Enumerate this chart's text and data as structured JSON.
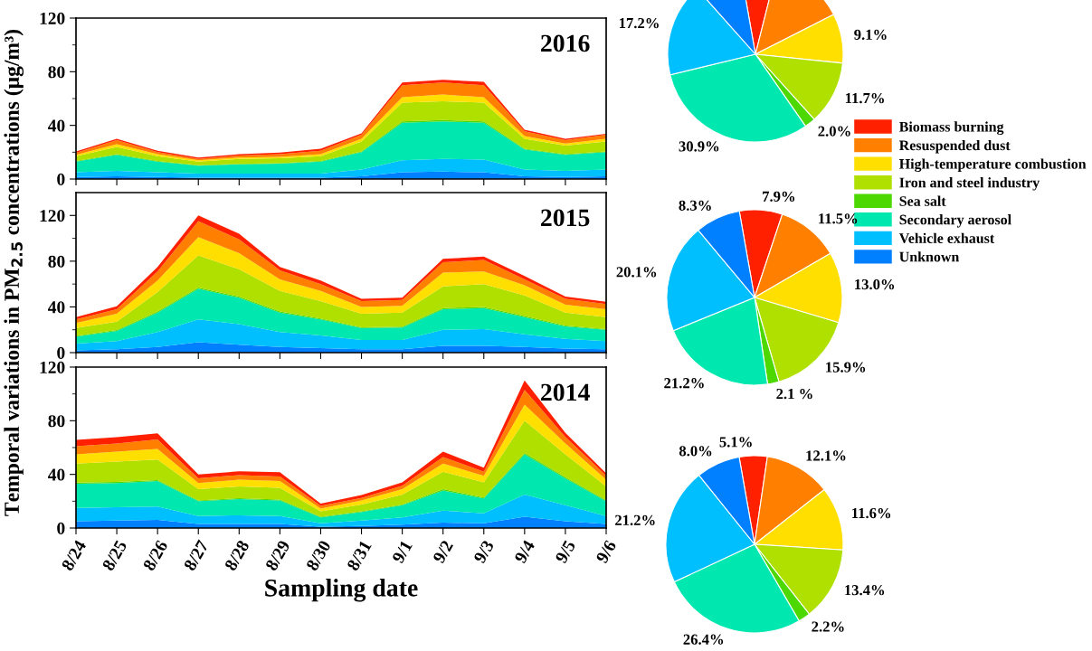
{
  "chart_data": [
    {
      "type": "area",
      "stacked": true,
      "title": "2016",
      "categories": [
        null,
        null,
        null,
        null,
        null,
        null,
        null,
        null,
        null,
        null,
        null,
        null,
        null,
        null
      ],
      "ylim": [
        0,
        120
      ],
      "yticks": [
        0,
        40,
        80,
        120
      ],
      "tick_labels": "y",
      "series": [
        {
          "color": "#0080ff",
          "values": [
            1.5,
            2,
            1.5,
            1,
            1,
            1,
            1,
            2,
            5,
            5.5,
            5,
            2,
            1.5,
            2
          ]
        },
        {
          "color": "#00bfff",
          "values": [
            3.5,
            4,
            3.5,
            3,
            3,
            3,
            3,
            5,
            9,
            9.5,
            9.5,
            5,
            4.5,
            5
          ]
        },
        {
          "color": "#00e8b0",
          "values": [
            8,
            12,
            8,
            6,
            7,
            7.5,
            9,
            13,
            28,
            28,
            27.5,
            15,
            12,
            13
          ]
        },
        {
          "color": "#4cd800",
          "values": [
            0.4,
            0.5,
            0.4,
            0.3,
            0.3,
            0.3,
            0.4,
            0.6,
            1,
            1,
            1,
            0.6,
            0.5,
            0.6
          ]
        },
        {
          "color": "#b0e000",
          "values": [
            3.6,
            5.5,
            3.6,
            2.7,
            3.7,
            3.7,
            3.6,
            7.4,
            14,
            14,
            14,
            7.4,
            6.5,
            7.4
          ]
        },
        {
          "color": "#ffdf00",
          "values": [
            1,
            2,
            1.5,
            1,
            1,
            1,
            1.5,
            2,
            4,
            5,
            4,
            2,
            1.5,
            2
          ]
        },
        {
          "color": "#ff8000",
          "values": [
            1.5,
            3,
            1.5,
            1,
            1.5,
            2,
            2.5,
            3,
            9,
            9,
            9,
            3.5,
            2.5,
            3
          ]
        },
        {
          "color": "#ff2000",
          "values": [
            1,
            1,
            1,
            1,
            1,
            1.2,
            1.6,
            1,
            2,
            2,
            2.5,
            1.2,
            1,
            0.7
          ]
        }
      ]
    },
    {
      "type": "pie",
      "categories": [
        "Biomass burning",
        "Resuspended dust",
        "High-temperature combustion",
        "Iron and steel industry",
        "Sea salt",
        "Secondary aerosol",
        "Vehicle exhaust",
        "Unknown"
      ],
      "values": [
        6.7,
        13.6,
        9.1,
        11.7,
        2.0,
        30.9,
        17.2,
        8.8
      ],
      "colors": [
        "#ff2000",
        "#ff8000",
        "#ffdf00",
        "#b0e000",
        "#4cd800",
        "#00e8b0",
        "#00bfff",
        "#0080ff"
      ],
      "value_labels": [
        null,
        null,
        "9.1%",
        "11.7%",
        "2.0%",
        "30.9%",
        "17.2%",
        null
      ],
      "legend": "bottom right"
    },
    {
      "type": "area",
      "stacked": true,
      "title": "2015",
      "ylabel": "Temporal variations in PM$_{2.5}$ concentrations (μg/m³)",
      "categories": [
        null,
        null,
        null,
        null,
        null,
        null,
        null,
        null,
        null,
        null,
        null,
        null,
        null,
        null
      ],
      "ylim": [
        0,
        140
      ],
      "yticks": [
        0,
        40,
        80,
        120
      ],
      "tick_labels": "y",
      "series": [
        {
          "color": "#0080ff",
          "values": [
            2,
            3,
            5,
            9,
            7,
            5,
            4,
            3,
            3,
            6,
            6,
            5,
            3.5,
            3
          ]
        },
        {
          "color": "#00bfff",
          "values": [
            6,
            7,
            13,
            20,
            18,
            13,
            11,
            8,
            8,
            14,
            14.5,
            11,
            8.5,
            7
          ]
        },
        {
          "color": "#00e8b0",
          "values": [
            6,
            9,
            17,
            27,
            23,
            17,
            14,
            10.5,
            11,
            18,
            18.5,
            15,
            11,
            10
          ]
        },
        {
          "color": "#4cd800",
          "values": [
            0.6,
            0.7,
            1,
            1,
            1,
            1,
            0.8,
            0.7,
            0.7,
            1,
            1,
            1,
            0.7,
            0.6
          ]
        },
        {
          "color": "#b0e000",
          "values": [
            6.9,
            7.3,
            17,
            28,
            24,
            18,
            15.2,
            11.8,
            12.3,
            19,
            20,
            18,
            11.3,
            10.4
          ]
        },
        {
          "color": "#ffdf00",
          "values": [
            4.5,
            7,
            10,
            16,
            14,
            10,
            9,
            6,
            6,
            12,
            11,
            9,
            7,
            7
          ]
        },
        {
          "color": "#ff8000",
          "values": [
            3,
            4,
            8,
            14,
            12,
            8,
            6,
            5,
            5,
            9,
            10,
            5,
            5,
            4.5
          ]
        },
        {
          "color": "#ff2000",
          "values": [
            2,
            2.5,
            4,
            5,
            5,
            3,
            3,
            2,
            2,
            3,
            3,
            3,
            2,
            2
          ]
        }
      ]
    },
    {
      "type": "pie",
      "categories": [
        null,
        null,
        null,
        null,
        null,
        null,
        null,
        null
      ],
      "values": [
        7.9,
        11.5,
        13.0,
        15.9,
        2.1,
        21.2,
        20.1,
        8.3
      ],
      "colors": [
        "#ff2000",
        "#ff8000",
        "#ffdf00",
        "#b0e000",
        "#4cd800",
        "#00e8b0",
        "#00bfff",
        "#0080ff"
      ],
      "value_labels": [
        "7.9%",
        "11.5%",
        "13.0%",
        "15.9%",
        "2.1 %",
        "21.2%",
        "20.1%",
        "8.3%"
      ]
    },
    {
      "type": "area",
      "stacked": true,
      "title": "2014",
      "xlabel": "Sampling date",
      "categories": [
        "8/24",
        "8/25",
        "8/26",
        "8/27",
        "8/28",
        "8/29",
        "8/30",
        "8/31",
        "9/1",
        "9/2",
        "9/3",
        "9/4",
        "9/5",
        "9/6"
      ],
      "ylim": [
        0,
        120
      ],
      "yticks": [
        0,
        40,
        80,
        120
      ],
      "series": [
        {
          "color": "#0080ff",
          "values": [
            5,
            5.5,
            6,
            3,
            3,
            3,
            1,
            1.5,
            2.5,
            4,
            3.5,
            8.5,
            5,
            3
          ]
        },
        {
          "color": "#00bfff",
          "values": [
            10,
            10,
            10,
            6,
            6.5,
            6,
            2.5,
            4,
            5.5,
            9,
            7.5,
            16.5,
            12,
            6
          ]
        },
        {
          "color": "#00e8b0",
          "values": [
            18,
            18,
            19,
            11,
            12,
            11.5,
            4.5,
            6.5,
            9,
            15,
            11,
            30,
            20,
            11
          ]
        },
        {
          "color": "#4cd800",
          "values": [
            0.8,
            0.8,
            0.8,
            0.6,
            0.7,
            0.7,
            0.4,
            0.5,
            0.6,
            1,
            0.8,
            1,
            1,
            0.8
          ]
        },
        {
          "color": "#b0e000",
          "values": [
            14.2,
            15.2,
            15.2,
            8.4,
            8.8,
            8.8,
            4.1,
            5,
            7.4,
            13,
            11.2,
            24,
            17,
            10.2
          ]
        },
        {
          "color": "#ffdf00",
          "values": [
            7,
            7.5,
            8,
            4.5,
            5,
            5,
            2,
            3,
            4,
            6,
            5,
            12,
            8,
            5
          ]
        },
        {
          "color": "#ff8000",
          "values": [
            6,
            6,
            7,
            3.5,
            3.5,
            3.5,
            2,
            2,
            2.5,
            5,
            3,
            11,
            5,
            3
          ]
        },
        {
          "color": "#ff2000",
          "values": [
            4.7,
            4.8,
            4.7,
            3,
            2.8,
            3.2,
            1.7,
            2.1,
            2.5,
            4,
            3,
            7,
            3,
            1.8
          ]
        }
      ]
    },
    {
      "type": "pie",
      "categories": [
        null,
        null,
        null,
        null,
        null,
        null,
        null,
        null
      ],
      "values": [
        5.1,
        12.1,
        11.6,
        13.4,
        2.2,
        26.4,
        21.2,
        8.0
      ],
      "colors": [
        "#ff2000",
        "#ff8000",
        "#ffdf00",
        "#b0e000",
        "#4cd800",
        "#00e8b0",
        "#00bfff",
        "#0080ff"
      ],
      "value_labels": [
        "5.1%",
        "12.1%",
        "11.6%",
        "13.4%",
        "2.2%",
        "26.4%",
        "21.2%",
        "8.0%"
      ]
    }
  ]
}
